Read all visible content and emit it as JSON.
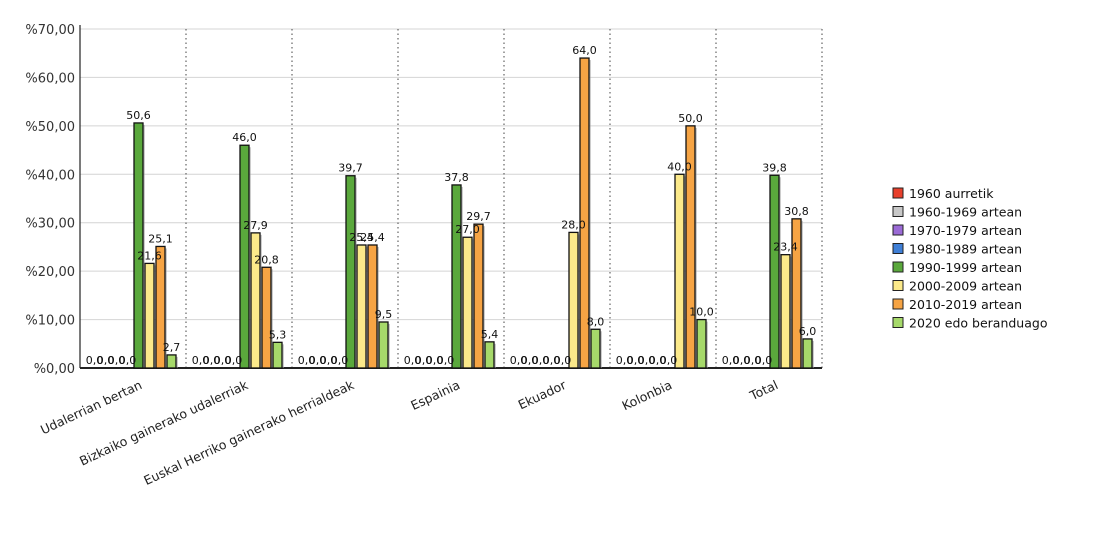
{
  "chart_data": {
    "type": "bar",
    "categories": [
      "Udalerrian bertan",
      "Bizkaiko gainerako udalerriak",
      "Euskal Herriko gainerako herrialdeak",
      "Espainia",
      "Ekuador",
      "Kolonbia",
      "Total"
    ],
    "ylim": [
      0,
      70
    ],
    "yticks": [
      "%0,00",
      "%10,00",
      "%20,00",
      "%30,00",
      "%40,00",
      "%50,00",
      "%60,00",
      "%70,00"
    ],
    "grid": true,
    "legend_position": "right",
    "series": [
      {
        "name": "1960 aurretik",
        "color": "#e8402c",
        "values": [
          0,
          0,
          0,
          0,
          0,
          0,
          0
        ],
        "labels": [
          "0,0",
          "0,0",
          "0,0",
          "0,0",
          "0,0",
          "0,0",
          "0,0"
        ]
      },
      {
        "name": "1960-1969 artean",
        "color": "#c8c8c8",
        "values": [
          0,
          0,
          0,
          0,
          0,
          0,
          0
        ],
        "labels": [
          "0,0",
          "0,0",
          "0,0",
          "0,0",
          "0,0",
          "0,0",
          "0,0"
        ]
      },
      {
        "name": "1970-1979 artean",
        "color": "#9b6bd6",
        "values": [
          0,
          0,
          0,
          0,
          0,
          0,
          0
        ],
        "labels": [
          "0,0",
          "0,0",
          "0,0",
          "0,0",
          "0,0",
          "0,0",
          "0,0"
        ]
      },
      {
        "name": "1980-1989 artean",
        "color": "#3f7fd6",
        "values": [
          0,
          0,
          0,
          0,
          0,
          0,
          0
        ],
        "labels": [
          "0,0",
          "0,0",
          "0,0",
          "0,0",
          "0,0",
          "0,0",
          "0,0"
        ]
      },
      {
        "name": "1990-1999 artean",
        "color": "#5aa83c",
        "values": [
          50.6,
          46.0,
          39.7,
          37.8,
          0,
          0,
          39.8
        ],
        "labels": [
          "50,6",
          "46,0",
          "39,7",
          "37,8",
          "0,0",
          "0,0",
          "39,8"
        ]
      },
      {
        "name": "2000-2009 artean",
        "color": "#fbe98a",
        "values": [
          21.6,
          27.9,
          25.4,
          27.0,
          28.0,
          40.0,
          23.4
        ],
        "labels": [
          "21,6",
          "27,9",
          "25,4",
          "27,0",
          "28,0",
          "40,0",
          "23,4"
        ]
      },
      {
        "name": "2010-2019 artean",
        "color": "#f6a444",
        "values": [
          25.1,
          20.8,
          25.4,
          29.7,
          64.0,
          50.0,
          30.8
        ],
        "labels": [
          "25,1",
          "20,8",
          "25,4",
          "29,7",
          "64,0",
          "50,0",
          "30,8"
        ]
      },
      {
        "name": "2020 edo beranduago",
        "color": "#a6d96a",
        "values": [
          2.7,
          5.3,
          9.5,
          5.4,
          8.0,
          10.0,
          6.0
        ],
        "labels": [
          "2,7",
          "5,3",
          "9,5",
          "5,4",
          "8,0",
          "10,0",
          "6,0"
        ]
      }
    ]
  }
}
